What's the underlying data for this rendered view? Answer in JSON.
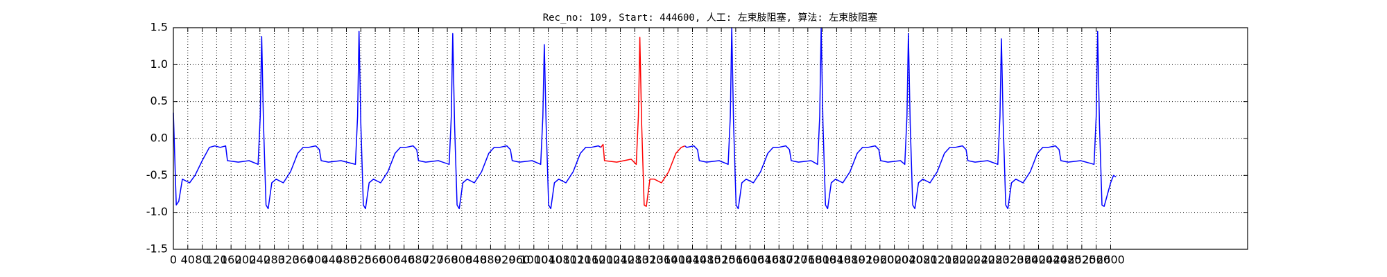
{
  "chart_data": {
    "type": "line",
    "title": "Rec_no: 109, Start: 444600, 人工: 左束肢阻塞, 算法: 左束肢阻塞",
    "xlim": [
      0,
      2980
    ],
    "ylim": [
      -1.5,
      1.5
    ],
    "xticks": [
      0,
      40,
      80,
      120,
      160,
      200,
      240,
      280,
      320,
      360,
      400,
      440,
      480,
      520,
      560,
      600,
      640,
      680,
      720,
      760,
      800,
      840,
      880,
      920,
      960,
      1000,
      1040,
      1080,
      1120,
      1160,
      1200,
      1240,
      1280,
      1320,
      1360,
      1400,
      1440,
      1480,
      1520,
      1560,
      1600,
      1640,
      1680,
      1720,
      1760,
      1800,
      1840,
      1880,
      1920,
      1960,
      2000,
      2040,
      2080,
      2120,
      2160,
      2200,
      2240,
      2280,
      2320,
      2360,
      2400,
      2440,
      2480,
      2520,
      2560,
      2600
    ],
    "yticks": [
      -1.5,
      {
        "value": -1,
        "label": "-1.0"
      },
      -0.5,
      {
        "value": 0,
        "label": "0.0"
      },
      0.5,
      {
        "value": 1,
        "label": "1.0"
      },
      1.5
    ],
    "grid": true,
    "series": [
      {
        "color": "#0000ff",
        "x": [
          0,
          8,
          15,
          25,
          45,
          60,
          80,
          100,
          115,
          130,
          145,
          150,
          180,
          210,
          235,
          241,
          245,
          250,
          257,
          263,
          273,
          285,
          305,
          325,
          345,
          360,
          375,
          395,
          405,
          410,
          430,
          465,
          505,
          511,
          515,
          520,
          527,
          533,
          543,
          555,
          575,
          595,
          615,
          630,
          645,
          665,
          675,
          680,
          700,
          735,
          765,
          771,
          775,
          780,
          787,
          793,
          803,
          815,
          835,
          855,
          875,
          890,
          905,
          925,
          935,
          940,
          960,
          995,
          1019,
          1025,
          1029,
          1034,
          1041,
          1047,
          1057,
          1069,
          1089,
          1109,
          1129,
          1144,
          1159,
          1179,
          1186,
          1300,
          1419,
          1424,
          1444,
          1454,
          1459,
          1479,
          1514,
          1539,
          1545,
          1549,
          1554,
          1561,
          1567,
          1577,
          1589,
          1609,
          1629,
          1649,
          1664,
          1679,
          1699,
          1709,
          1714,
          1734,
          1769,
          1787,
          1793,
          1797,
          1802,
          1809,
          1815,
          1825,
          1837,
          1857,
          1877,
          1897,
          1912,
          1927,
          1947,
          1957,
          1962,
          1982,
          2017,
          2029,
          2035,
          2039,
          2044,
          2051,
          2057,
          2067,
          2079,
          2099,
          2119,
          2139,
          2154,
          2169,
          2189,
          2199,
          2204,
          2224,
          2259,
          2287,
          2293,
          2297,
          2302,
          2309,
          2315,
          2325,
          2337,
          2357,
          2377,
          2397,
          2412,
          2427,
          2447,
          2457,
          2462,
          2482,
          2517,
          2554,
          2560,
          2564,
          2569,
          2576,
          2582,
          2600,
          2608,
          2615
        ],
        "values": [
          0.35,
          -0.9,
          -0.85,
          -0.55,
          -0.6,
          -0.5,
          -0.3,
          -0.12,
          -0.1,
          -0.12,
          -0.1,
          -0.3,
          -0.32,
          -0.3,
          -0.35,
          0.3,
          1.38,
          0.2,
          -0.9,
          -0.95,
          -0.6,
          -0.55,
          -0.6,
          -0.45,
          -0.2,
          -0.12,
          -0.12,
          -0.1,
          -0.15,
          -0.3,
          -0.32,
          -0.3,
          -0.35,
          0.3,
          1.45,
          0.2,
          -0.9,
          -0.95,
          -0.6,
          -0.55,
          -0.6,
          -0.45,
          -0.2,
          -0.12,
          -0.12,
          -0.1,
          -0.15,
          -0.3,
          -0.32,
          -0.3,
          -0.35,
          0.3,
          1.42,
          0.2,
          -0.9,
          -0.95,
          -0.6,
          -0.55,
          -0.6,
          -0.45,
          -0.2,
          -0.12,
          -0.12,
          -0.1,
          -0.15,
          -0.3,
          -0.32,
          -0.3,
          -0.35,
          0.3,
          1.27,
          0.2,
          -0.9,
          -0.95,
          -0.6,
          -0.55,
          -0.6,
          -0.45,
          -0.2,
          -0.12,
          -0.12,
          -0.1,
          -0.12,
          null,
          -0.1,
          -0.12,
          -0.1,
          -0.15,
          -0.3,
          -0.32,
          -0.3,
          -0.35,
          0.3,
          1.5,
          0.2,
          -0.9,
          -0.95,
          -0.6,
          -0.55,
          -0.6,
          -0.45,
          -0.2,
          -0.12,
          -0.12,
          -0.1,
          -0.15,
          -0.3,
          -0.32,
          -0.3,
          -0.35,
          0.3,
          1.5,
          0.2,
          -0.9,
          -0.95,
          -0.6,
          -0.55,
          -0.6,
          -0.45,
          -0.2,
          -0.12,
          -0.12,
          -0.1,
          -0.15,
          -0.3,
          -0.32,
          -0.3,
          -0.35,
          0.3,
          1.42,
          0.2,
          -0.9,
          -0.95,
          -0.6,
          -0.55,
          -0.6,
          -0.45,
          -0.2,
          -0.12,
          -0.12,
          -0.1,
          -0.15,
          -0.3,
          -0.32,
          -0.3,
          -0.35,
          0.3,
          1.35,
          0.2,
          -0.9,
          -0.95,
          -0.6,
          -0.55,
          -0.6,
          -0.45,
          -0.2,
          -0.12,
          -0.12,
          -0.1,
          -0.15,
          -0.3,
          -0.32,
          -0.3,
          -0.35,
          0.3,
          1.45,
          0.2,
          -0.9,
          -0.92,
          -0.6,
          -0.5,
          -0.52
        ]
      },
      {
        "color": "#ff0000",
        "x": [
          1186,
          1192,
          1196,
          1230,
          1270,
          1284,
          1290,
          1294,
          1299,
          1306,
          1312,
          1322,
          1334,
          1354,
          1374,
          1394,
          1409,
          1419
        ],
        "values": [
          -0.12,
          -0.08,
          -0.3,
          -0.32,
          -0.28,
          -0.35,
          0.3,
          1.37,
          0.2,
          -0.9,
          -0.92,
          -0.55,
          -0.55,
          -0.6,
          -0.45,
          -0.2,
          -0.12,
          -0.1
        ]
      }
    ]
  }
}
